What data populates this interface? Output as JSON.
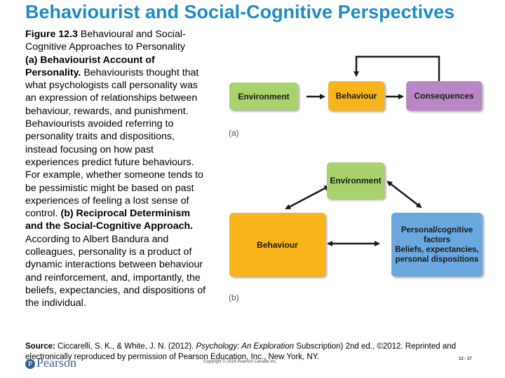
{
  "title": "Behaviourist and Social-Cognitive Perspectives",
  "caption": {
    "fig_label": "Figure 12.3",
    "fig_title": " Behavioural and Social-Cognitive Approaches to Personality",
    "a_heading": "(a) Behaviourist Account of Personality.",
    "a_text": " Behaviourists thought that what psychologists call personality was an expression of relationships between behaviour, rewards, and punishment. Behaviourists avoided referring to personality traits and dispositions, instead focusing on how past experiences predict future behaviours. For example, whether someone tends to be pessimistic might be based on past experiences of feeling a lost sense of control. ",
    "b_heading": "(b) Reciprocal Determinism and the Social-Cognitive Approach.",
    "b_text": " According to Albert Bandura and colleagues, personality is a product of dynamic interactions between behaviour and reinforcement, and, importantly, the beliefs, expectancies, and dispositions of the individual."
  },
  "diagram_a": {
    "label": "(a)",
    "environment": "Environment",
    "behaviour": "Behaviour",
    "consequences": "Consequences"
  },
  "diagram_b": {
    "label": "(b)",
    "environment": "Environment",
    "behaviour": "Behaviour",
    "personal_line1": "Personal/cognitive",
    "personal_line2": "factors",
    "personal_line3": "Beliefs, expectancies,",
    "personal_line4": "personal dispositions"
  },
  "source": {
    "label": "Source:",
    "text_before": " Ciccarelli, S. K., & White, J. N. (2012). ",
    "italic": "Psychology: An Exploration",
    "text_after": " Subscription) 2nd ed., ©2012. Reprinted and electronically reproduced by permission of Pearson Education, Inc., New York, NY."
  },
  "footer": {
    "logo": "Pearson",
    "copyright": "Copyright © 2016 Pearson Canada Inc.",
    "page": "12 - 17"
  },
  "colors": {
    "title": "#1e8bc3",
    "green": "#a8d26b",
    "orange": "#f9b31b",
    "purple": "#b987c6",
    "blue": "#6aa8df"
  }
}
